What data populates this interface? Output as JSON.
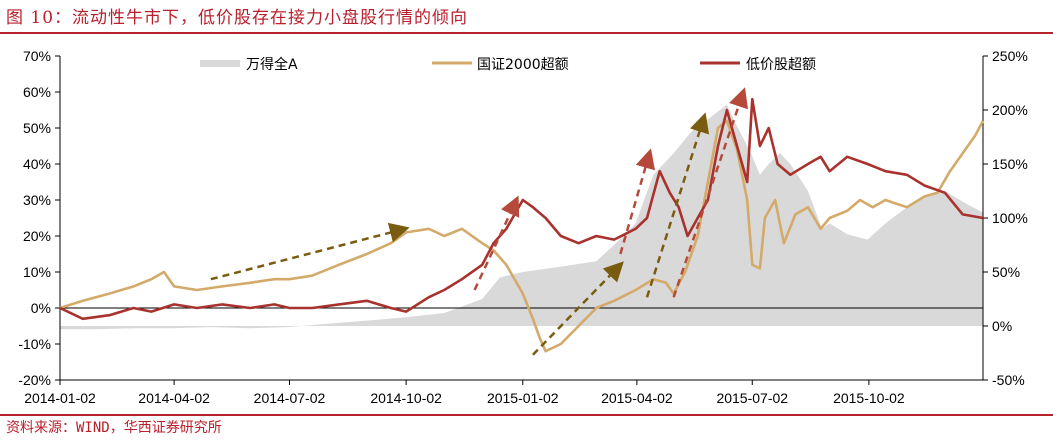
{
  "title": "图 10：流动性牛市下，低价股存在接力小盘股行情的倾向",
  "source": "资料来源：WIND，华西证券研究所",
  "chart_data": {
    "type": "line",
    "left_axis": {
      "min": -20,
      "max": 70,
      "step": 10,
      "ticks": [
        "70%",
        "60%",
        "50%",
        "40%",
        "30%",
        "20%",
        "10%",
        "0%",
        "-10%",
        "-20%"
      ]
    },
    "right_axis": {
      "min": -50,
      "max": 250,
      "step": 50,
      "ticks": [
        "250%",
        "200%",
        "150%",
        "100%",
        "50%",
        "0%",
        "-50%"
      ]
    },
    "x_ticks": [
      "2014-01-02",
      "2014-04-02",
      "2014-07-02",
      "2014-10-02",
      "2015-01-02",
      "2015-04-02",
      "2015-07-02",
      "2015-10-02"
    ],
    "colors": {
      "wind_a": "#d9d9d9",
      "gz2000": "#d4aa6a",
      "low_price": "#a8322d",
      "arrow_gold": "#7a5c10",
      "arrow_red": "#b54a3a"
    },
    "series": [
      {
        "name": "万得全A",
        "axis": "right",
        "type": "area",
        "x": [
          "2014-01-02",
          "2014-02-01",
          "2014-03-03",
          "2014-04-01",
          "2014-05-01",
          "2014-06-01",
          "2014-07-01",
          "2014-08-01",
          "2014-09-01",
          "2014-10-01",
          "2014-11-01",
          "2014-12-01",
          "2014-12-15",
          "2015-01-02",
          "2015-02-01",
          "2015-03-01",
          "2015-03-15",
          "2015-04-01",
          "2015-04-15",
          "2015-05-01",
          "2015-05-15",
          "2015-06-01",
          "2015-06-12",
          "2015-06-20",
          "2015-07-01",
          "2015-07-08",
          "2015-07-15",
          "2015-07-24",
          "2015-08-01",
          "2015-08-15",
          "2015-08-26",
          "2015-09-01",
          "2015-09-15",
          "2015-10-01",
          "2015-10-15",
          "2015-11-01",
          "2015-11-15",
          "2015-12-01",
          "2015-12-15",
          "2015-12-31"
        ],
        "values": [
          -3,
          -3,
          -2,
          -2,
          -1,
          -2,
          -1,
          2,
          5,
          8,
          12,
          25,
          45,
          50,
          55,
          60,
          75,
          95,
          140,
          160,
          180,
          195,
          205,
          185,
          160,
          140,
          150,
          160,
          150,
          125,
          90,
          95,
          85,
          80,
          95,
          110,
          120,
          125,
          115,
          105
        ]
      },
      {
        "name": "国证2000超额",
        "axis": "left",
        "x": [
          "2014-01-02",
          "2014-01-20",
          "2014-02-10",
          "2014-03-01",
          "2014-03-15",
          "2014-03-25",
          "2014-04-02",
          "2014-04-20",
          "2014-05-10",
          "2014-06-01",
          "2014-06-20",
          "2014-07-02",
          "2014-07-20",
          "2014-08-10",
          "2014-09-01",
          "2014-09-20",
          "2014-10-02",
          "2014-10-20",
          "2014-11-01",
          "2014-11-15",
          "2014-12-01",
          "2014-12-10",
          "2014-12-20",
          "2015-01-02",
          "2015-01-10",
          "2015-01-15",
          "2015-01-20",
          "2015-02-01",
          "2015-02-15",
          "2015-03-01",
          "2015-03-15",
          "2015-04-01",
          "2015-04-15",
          "2015-04-25",
          "2015-05-01",
          "2015-05-10",
          "2015-05-20",
          "2015-05-28",
          "2015-06-05",
          "2015-06-12",
          "2015-06-20",
          "2015-06-28",
          "2015-07-02",
          "2015-07-08",
          "2015-07-12",
          "2015-07-20",
          "2015-07-27",
          "2015-08-05",
          "2015-08-15",
          "2015-08-25",
          "2015-09-01",
          "2015-09-15",
          "2015-09-25",
          "2015-10-05",
          "2015-10-15",
          "2015-11-01",
          "2015-11-15",
          "2015-11-25",
          "2015-12-05",
          "2015-12-15",
          "2015-12-25",
          "2015-12-31"
        ],
        "values": [
          0,
          2,
          4,
          6,
          8,
          10,
          6,
          5,
          6,
          7,
          8,
          8,
          9,
          12,
          15,
          18,
          21,
          22,
          20,
          22,
          18,
          16,
          12,
          4,
          -3,
          -8,
          -12,
          -10,
          -5,
          0,
          2,
          5,
          8,
          7,
          4,
          10,
          20,
          35,
          50,
          52,
          44,
          30,
          12,
          11,
          25,
          30,
          18,
          26,
          28,
          22,
          25,
          27,
          30,
          28,
          30,
          28,
          31,
          32,
          38,
          43,
          48,
          52
        ]
      },
      {
        "name": "低价股超额",
        "axis": "left",
        "x": [
          "2014-01-02",
          "2014-01-20",
          "2014-02-10",
          "2014-03-01",
          "2014-03-15",
          "2014-04-02",
          "2014-04-20",
          "2014-05-10",
          "2014-06-01",
          "2014-06-20",
          "2014-07-02",
          "2014-07-20",
          "2014-08-10",
          "2014-09-01",
          "2014-09-20",
          "2014-10-02",
          "2014-10-20",
          "2014-11-01",
          "2014-11-15",
          "2014-12-01",
          "2014-12-10",
          "2014-12-20",
          "2015-01-02",
          "2015-01-10",
          "2015-01-20",
          "2015-02-01",
          "2015-02-15",
          "2015-03-01",
          "2015-03-15",
          "2015-04-01",
          "2015-04-10",
          "2015-04-20",
          "2015-04-28",
          "2015-05-05",
          "2015-05-12",
          "2015-05-20",
          "2015-05-28",
          "2015-06-05",
          "2015-06-12",
          "2015-06-20",
          "2015-06-28",
          "2015-07-02",
          "2015-07-08",
          "2015-07-15",
          "2015-07-22",
          "2015-08-01",
          "2015-08-15",
          "2015-08-25",
          "2015-09-01",
          "2015-09-15",
          "2015-10-01",
          "2015-10-15",
          "2015-11-01",
          "2015-11-15",
          "2015-12-01",
          "2015-12-15",
          "2015-12-31"
        ],
        "values": [
          0,
          -3,
          -2,
          0,
          -1,
          1,
          0,
          1,
          0,
          1,
          0,
          0,
          1,
          2,
          0,
          -1,
          3,
          5,
          8,
          12,
          18,
          22,
          30,
          28,
          25,
          20,
          18,
          20,
          19,
          22,
          25,
          38,
          32,
          28,
          20,
          25,
          30,
          45,
          55,
          45,
          35,
          58,
          45,
          50,
          40,
          37,
          40,
          42,
          38,
          42,
          40,
          38,
          37,
          34,
          32,
          26,
          25
        ]
      }
    ],
    "annotations": [
      {
        "type": "arrow",
        "color": "gold",
        "from": [
          "2014-05-01",
          8
        ],
        "to": [
          "2014-10-01",
          22
        ]
      },
      {
        "type": "arrow",
        "color": "red",
        "from": [
          "2014-11-25",
          5
        ],
        "to": [
          "2014-12-28",
          30
        ]
      },
      {
        "type": "arrow",
        "color": "gold",
        "from": [
          "2015-01-10",
          -13
        ],
        "to": [
          "2015-03-20",
          12
        ]
      },
      {
        "type": "arrow",
        "color": "red",
        "from": [
          "2015-03-20",
          15
        ],
        "to": [
          "2015-04-12",
          43
        ]
      },
      {
        "type": "arrow",
        "color": "gold",
        "from": [
          "2015-04-10",
          3
        ],
        "to": [
          "2015-05-25",
          53
        ]
      },
      {
        "type": "arrow",
        "color": "red",
        "from": [
          "2015-05-01",
          3
        ],
        "to": [
          "2015-06-25",
          60
        ]
      }
    ],
    "legend_position": "top",
    "grid": false
  }
}
